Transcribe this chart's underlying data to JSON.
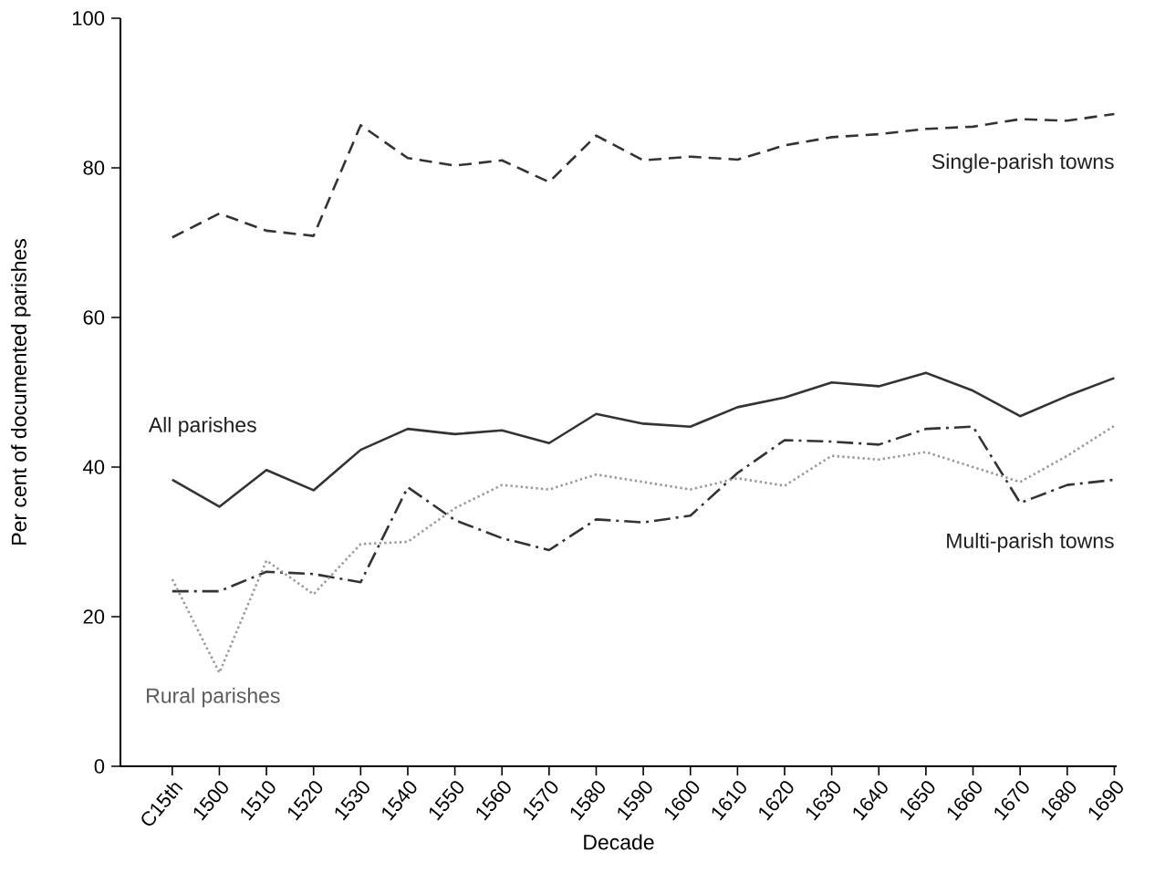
{
  "chart_data": {
    "type": "line",
    "xlabel": "Decade",
    "ylabel": "Per cent of documented parishes",
    "categories": [
      "C15th",
      "1500",
      "1510",
      "1520",
      "1530",
      "1540",
      "1550",
      "1560",
      "1570",
      "1580",
      "1590",
      "1600",
      "1610",
      "1620",
      "1630",
      "1640",
      "1650",
      "1660",
      "1670",
      "1680",
      "1690"
    ],
    "series": [
      {
        "name": "Single-parish towns",
        "color": "#333333",
        "line_style": "dashed",
        "values": [
          70.7,
          73.9,
          71.6,
          70.9,
          85.7,
          81.3,
          80.3,
          81,
          78.1,
          84.3,
          81,
          81.5,
          81.1,
          83,
          84.1,
          84.5,
          85.2,
          85.5,
          86.5,
          86.3,
          87.2
        ]
      },
      {
        "name": "All parishes",
        "color": "#333333",
        "line_style": "solid",
        "values": [
          38.3,
          34.7,
          39.6,
          36.9,
          42.3,
          45.1,
          44.4,
          44.9,
          43.2,
          47.1,
          45.8,
          45.4,
          48,
          49.3,
          51.3,
          50.8,
          52.6,
          50.2,
          46.8,
          49.5,
          51.9
        ]
      },
      {
        "name": "Multi-parish towns",
        "color": "#333333",
        "line_style": "dashdot",
        "values": [
          23.4,
          23.4,
          26,
          25.7,
          24.6,
          37.3,
          32.9,
          30.5,
          28.9,
          33,
          32.6,
          33.5,
          39.2,
          43.6,
          43.4,
          43,
          45.1,
          45.4,
          35.2,
          37.6,
          38.3
        ]
      },
      {
        "name": "Rural parishes",
        "color": "#999999",
        "line_style": "dotted",
        "values": [
          25,
          12.5,
          27.5,
          23,
          29.7,
          30,
          34.5,
          37.6,
          37,
          39,
          38,
          37,
          38.5,
          37.5,
          41.5,
          41,
          42,
          40,
          38,
          41.5,
          45.5
        ]
      }
    ],
    "ylim": [
      0,
      100
    ],
    "yticks": [
      0,
      20,
      40,
      60,
      80,
      100
    ],
    "grid": false,
    "marker": "none"
  }
}
